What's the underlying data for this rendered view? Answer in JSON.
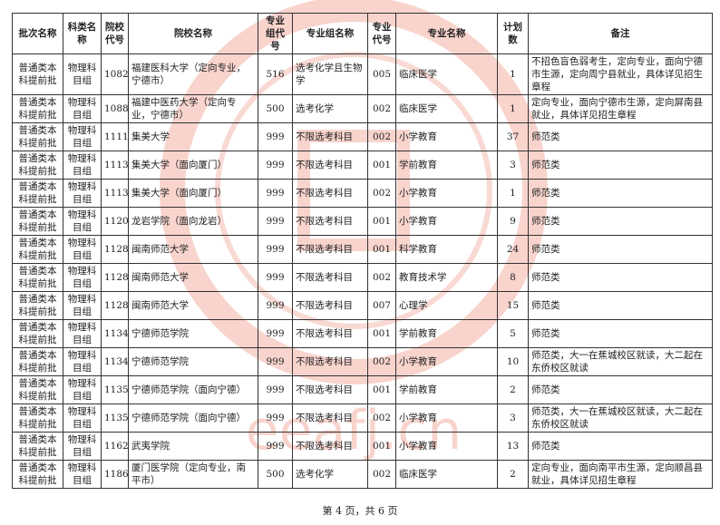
{
  "table": {
    "headers": [
      "批次名称",
      "科类名称",
      "院校代号",
      "院校名称",
      "专业组代号",
      "专业组名称",
      "专业代号",
      "专业名称",
      "计划数",
      "备注"
    ],
    "rows": [
      [
        "普通类本科提前批",
        "物理科目组",
        "1082",
        "福建医科大学（定向专业，宁德市）",
        "516",
        "选考化学且生物学",
        "005",
        "临床医学",
        "1",
        "不招色盲色弱考生，定向专业，面向宁德市生源，定向周宁县就业，具体详见招生章程"
      ],
      [
        "普通类本科提前批",
        "物理科目组",
        "1088",
        "福建中医药大学（定向专业，宁德市）",
        "500",
        "选考化学",
        "002",
        "临床医学",
        "1",
        "定向专业，面向宁德市生源，定向屏南县就业，具体详见招生章程"
      ],
      [
        "普通类本科提前批",
        "物理科目组",
        "1111",
        "集美大学",
        "999",
        "不限选考科目",
        "002",
        "小学教育",
        "37",
        "师范类"
      ],
      [
        "普通类本科提前批",
        "物理科目组",
        "1113",
        "集美大学（面向厦门）",
        "999",
        "不限选考科目",
        "001",
        "学前教育",
        "3",
        "师范类"
      ],
      [
        "普通类本科提前批",
        "物理科目组",
        "1113",
        "集美大学（面向厦门）",
        "999",
        "不限选考科目",
        "002",
        "小学教育",
        "1",
        "师范类"
      ],
      [
        "普通类本科提前批",
        "物理科目组",
        "1120",
        "龙岩学院（面向龙岩）",
        "999",
        "不限选考科目",
        "001",
        "小学教育",
        "9",
        "师范类"
      ],
      [
        "普通类本科提前批",
        "物理科目组",
        "1128",
        "闽南师范大学",
        "999",
        "不限选考科目",
        "001",
        "科学教育",
        "24",
        "师范类"
      ],
      [
        "普通类本科提前批",
        "物理科目组",
        "1128",
        "闽南师范大学",
        "999",
        "不限选考科目",
        "002",
        "教育技术学",
        "8",
        "师范类"
      ],
      [
        "普通类本科提前批",
        "物理科目组",
        "1128",
        "闽南师范大学",
        "999",
        "不限选考科目",
        "007",
        "心理学",
        "15",
        "师范类"
      ],
      [
        "普通类本科提前批",
        "物理科目组",
        "1134",
        "宁德师范学院",
        "999",
        "不限选考科目",
        "001",
        "学前教育",
        "5",
        "师范类"
      ],
      [
        "普通类本科提前批",
        "物理科目组",
        "1134",
        "宁德师范学院",
        "999",
        "不限选考科目",
        "002",
        "小学教育",
        "10",
        "师范类，大一在蕉城校区就读，大二起在东侨校区就读"
      ],
      [
        "普通类本科提前批",
        "物理科目组",
        "1135",
        "宁德师范学院（面向宁德）",
        "999",
        "不限选考科目",
        "001",
        "学前教育",
        "2",
        "师范类"
      ],
      [
        "普通类本科提前批",
        "物理科目组",
        "1135",
        "宁德师范学院（面向宁德）",
        "999",
        "不限选考科目",
        "002",
        "小学教育",
        "3",
        "师范类，大一在蕉城校区就读，大二起在东侨校区就读"
      ],
      [
        "普通类本科提前批",
        "物理科目组",
        "1162",
        "武夷学院",
        "999",
        "不限选考科目",
        "001",
        "小学教育",
        "13",
        "师范类"
      ],
      [
        "普通类本科提前批",
        "物理科目组",
        "1186",
        "厦门医学院（定向专业，南平市）",
        "500",
        "选考化学",
        "002",
        "临床医学",
        "2",
        "定向专业，面向南平市生源，定向顺昌县就业，具体详见招生章程"
      ]
    ]
  },
  "footer": "第 4 页，共 6 页",
  "watermark": {
    "text": "www.eeafj.cn",
    "color": "#e8604c"
  }
}
